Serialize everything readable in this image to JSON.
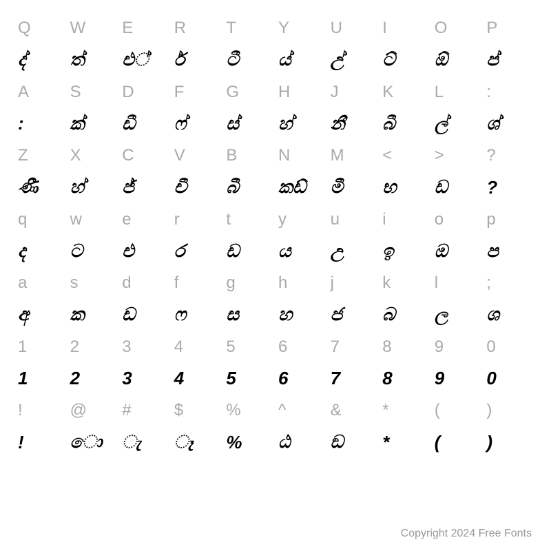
{
  "rows": [
    {
      "type": "key",
      "cells": [
        "Q",
        "W",
        "E",
        "R",
        "T",
        "Y",
        "U",
        "I",
        "O",
        "P"
      ]
    },
    {
      "type": "glyph",
      "cells": [
        "ද්",
        "ත්",
        "එ්",
        "ර්",
        "ටී",
        "ය්",
        "උ්",
        "ට්",
        "ඕ",
        "ප්"
      ]
    },
    {
      "type": "key",
      "cells": [
        "A",
        "S",
        "D",
        "F",
        "G",
        "H",
        "J",
        "K",
        "L",
        ":"
      ]
    },
    {
      "type": "glyph",
      "cells": [
        ":",
        "ක්",
        "ඩී",
        "ෆ්",
        "ස්",
        "හ්",
        "නී",
        "බී",
        "ල්",
        "ශ්"
      ]
    },
    {
      "type": "key",
      "cells": [
        "Z",
        "X",
        "C",
        "V",
        "B",
        "N",
        "M",
        "<",
        ">",
        "?"
      ]
    },
    {
      "type": "glyph",
      "cells": [
        "ණී",
        "හ්",
        "ජ්",
        "චී",
        "බී",
        "කඩ්",
        "මී",
        "භ",
        "ඩ",
        "?"
      ]
    },
    {
      "type": "key",
      "cells": [
        "q",
        "w",
        "e",
        "r",
        "t",
        "y",
        "u",
        "i",
        "o",
        "p"
      ]
    },
    {
      "type": "glyph",
      "cells": [
        "ද",
        "ට",
        "එ",
        "ර",
        "ඩ",
        "ය",
        "උ",
        "ඉ",
        "ඔ",
        "ප"
      ]
    },
    {
      "type": "key",
      "cells": [
        "a",
        "s",
        "d",
        "f",
        "g",
        "h",
        "j",
        "k",
        "l",
        ";"
      ]
    },
    {
      "type": "glyph",
      "cells": [
        "අ",
        "ක",
        "ඩ",
        "ෆ",
        "ස",
        "හ",
        "ජ",
        "බ",
        "ල",
        "ශ"
      ]
    },
    {
      "type": "key",
      "cells": [
        "1",
        "2",
        "3",
        "4",
        "5",
        "6",
        "7",
        "8",
        "9",
        "0"
      ]
    },
    {
      "type": "glyph",
      "cells": [
        "1",
        "2",
        "3",
        "4",
        "5",
        "6",
        "7",
        "8",
        "9",
        "0"
      ]
    },
    {
      "type": "key",
      "cells": [
        "!",
        "@",
        "#",
        "$",
        "%",
        "^",
        "&",
        "*",
        "(",
        ")"
      ]
    },
    {
      "type": "glyph",
      "cells": [
        "!",
        "ො",
        "ැ",
        "ෑ",
        "%",
        "ඨ",
        "ඞ",
        "*",
        "(",
        ")"
      ]
    }
  ],
  "copyright": "Copyright 2024 Free Fonts",
  "colors": {
    "key": "#aaaaaa",
    "glyph": "#000000",
    "background": "#ffffff",
    "copyright": "#999999"
  },
  "grid": {
    "cols": 10,
    "visible_rows": 14
  },
  "font": {
    "key_size": 24,
    "glyph_size": 26,
    "glyph_style": "bold italic"
  }
}
